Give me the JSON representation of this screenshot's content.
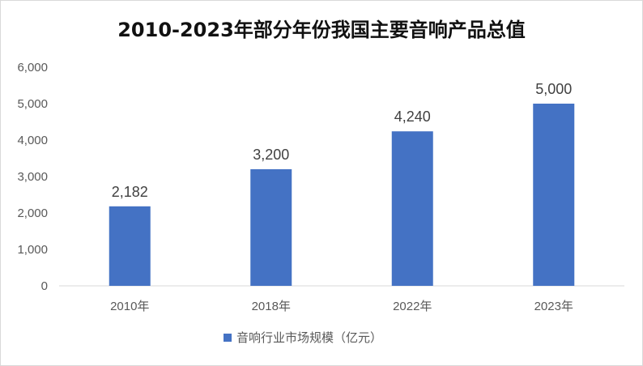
{
  "chart_data": {
    "type": "bar",
    "title": "2010-2023年部分年份我国主要音响产品总值",
    "categories": [
      "2010年",
      "2018年",
      "2022年",
      "2023年"
    ],
    "series": [
      {
        "name": "音响行业市场规模（亿元）",
        "values": [
          2182,
          3200,
          4240,
          5000
        ],
        "color": "#4472c4"
      }
    ],
    "data_labels": [
      "2,182",
      "3,200",
      "4,240",
      "5,000"
    ],
    "ylim": [
      0,
      6000
    ],
    "y_ticks": [
      0,
      1000,
      2000,
      3000,
      4000,
      5000,
      6000
    ],
    "y_tick_labels": [
      "0",
      "1,000",
      "2,000",
      "3,000",
      "4,000",
      "5,000",
      "6,000"
    ],
    "grid": false,
    "legend_position": "bottom"
  }
}
